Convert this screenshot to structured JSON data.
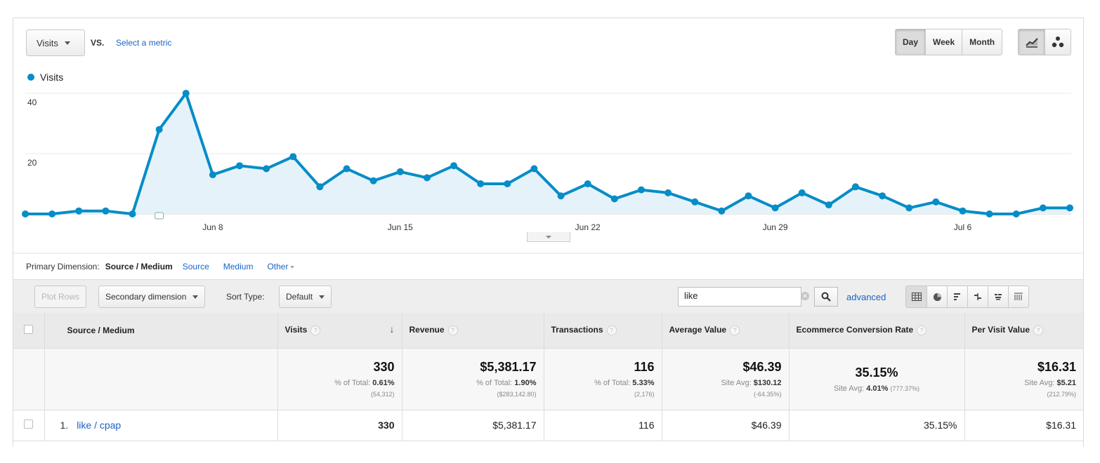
{
  "controls": {
    "metric": "Visits",
    "vs_label": "VS.",
    "select_metric": "Select a metric",
    "periods": [
      "Day",
      "Week",
      "Month"
    ],
    "active_period": "Day",
    "chart_types": [
      "line-chart-icon",
      "motion-chart-icon"
    ]
  },
  "chart_data": {
    "type": "area",
    "legend": [
      "Visits"
    ],
    "series": [
      {
        "name": "Visits",
        "color": "#058dc7",
        "values": [
          0,
          0,
          1,
          1,
          0,
          28,
          40,
          13,
          16,
          15,
          19,
          9,
          15,
          11,
          14,
          12,
          16,
          10,
          10,
          15,
          6,
          10,
          5,
          8,
          7,
          4,
          1,
          6,
          2,
          7,
          3,
          9,
          6,
          2,
          4,
          1,
          0,
          0,
          2,
          2
        ]
      }
    ],
    "x_tick_labels": [
      {
        "label": "Jun 8",
        "index": 7
      },
      {
        "label": "Jun 15",
        "index": 14
      },
      {
        "label": "Jun 22",
        "index": 21
      },
      {
        "label": "Jun 29",
        "index": 28
      },
      {
        "label": "Jul 6",
        "index": 35
      }
    ],
    "y_ticks": [
      20,
      40
    ],
    "ylim": [
      0,
      40
    ],
    "grid": true,
    "annotation_index": 5
  },
  "dimension": {
    "label": "Primary Dimension:",
    "current": "Source / Medium",
    "links": [
      "Source",
      "Medium"
    ],
    "other": "Other"
  },
  "toolbar": {
    "plot_rows": "Plot Rows",
    "secondary_dimension": "Secondary dimension",
    "sort_type_label": "Sort Type:",
    "sort_type_value": "Default",
    "search_value": "like",
    "advanced": "advanced"
  },
  "table": {
    "headers": {
      "source": "Source / Medium",
      "visits": "Visits",
      "revenue": "Revenue",
      "transactions": "Transactions",
      "avg": "Average Value",
      "ecr": "Ecommerce Conversion Rate",
      "pvv": "Per Visit Value"
    },
    "totals": {
      "visits": {
        "big": "330",
        "label": "% of Total: ",
        "strong": "0.61%",
        "sub": "(54,312)"
      },
      "revenue": {
        "big": "$5,381.17",
        "label": "% of Total: ",
        "strong": "1.90%",
        "sub": "($283,142.80)"
      },
      "transactions": {
        "big": "116",
        "label": "% of Total: ",
        "strong": "5.33%",
        "sub": "(2,176)"
      },
      "avg": {
        "big": "$46.39",
        "label": "Site Avg: ",
        "strong": "$130.12",
        "sub": "(-64.35%)"
      },
      "ecr": {
        "big": "35.15%",
        "label": "Site Avg: ",
        "strong": "4.01%",
        "sub": "(777.37%)"
      },
      "pvv": {
        "big": "$16.31",
        "label": "Site Avg: ",
        "strong": "$5.21",
        "sub": "(212.79%)"
      }
    },
    "rows": [
      {
        "num": "1.",
        "name": "like / cpap",
        "visits": "330",
        "revenue": "$5,381.17",
        "transactions": "116",
        "avg": "$46.39",
        "ecr": "35.15%",
        "pvv": "$16.31"
      }
    ]
  }
}
